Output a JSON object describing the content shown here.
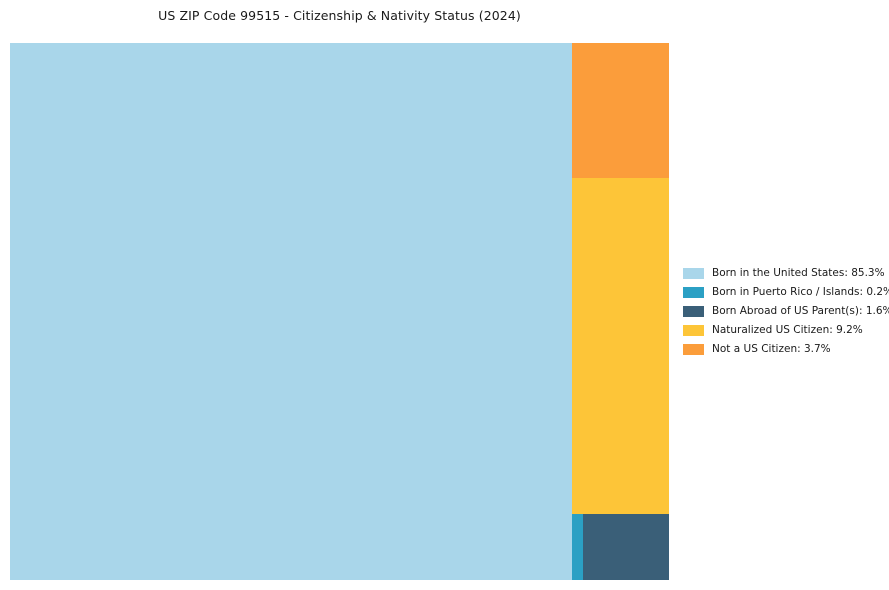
{
  "title": "US ZIP Code 99515 - Citizenship & Nativity Status (2024)",
  "chart_data": {
    "type": "treemap",
    "title": "US ZIP Code 99515 - Citizenship & Nativity Status (2024)",
    "unit": "%",
    "legend_position": "right",
    "categories": [
      "Born in the United States",
      "Born in Puerto Rico / Islands",
      "Born Abroad of US Parent(s)",
      "Naturalized US Citizen",
      "Not a US Citizen"
    ],
    "values": [
      85.3,
      0.2,
      1.6,
      9.2,
      3.7
    ],
    "colors": [
      "#A9D6EA",
      "#2BA0C4",
      "#3A5F78",
      "#FDC538",
      "#FB9D3B"
    ],
    "legend": [
      {
        "label": "Born in the United States: 85.3%",
        "color": "#A9D6EA"
      },
      {
        "label": "Born in Puerto Rico / Islands: 0.2%",
        "color": "#2BA0C4"
      },
      {
        "label": "Born Abroad of US Parent(s): 1.6%",
        "color": "#3A5F78"
      },
      {
        "label": "Naturalized US Citizen: 9.2%",
        "color": "#FDC538"
      },
      {
        "label": "Not a US Citizen: 3.7%",
        "color": "#FB9D3B"
      }
    ],
    "background": "#ffffff"
  }
}
